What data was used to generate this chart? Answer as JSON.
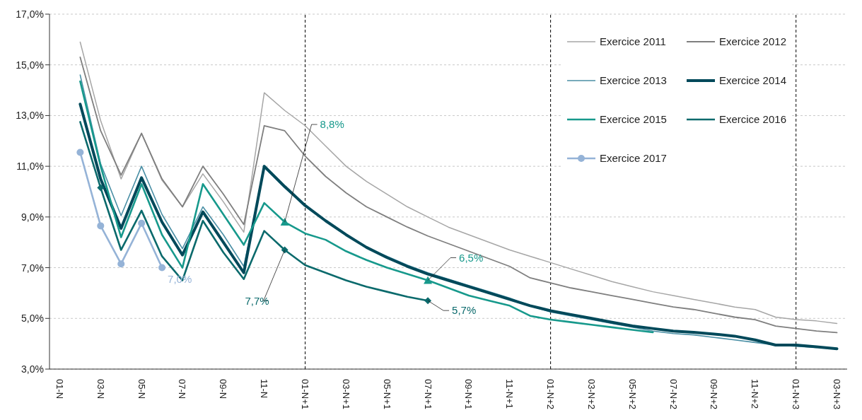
{
  "chart_data": {
    "type": "line",
    "categories": [
      "01-N",
      null,
      "03-N",
      null,
      "05-N",
      null,
      "07-N",
      null,
      "09-N",
      null,
      "11-N",
      null,
      "01-N+1",
      null,
      "03-N+1",
      null,
      "05-N+1",
      null,
      "07-N+1",
      null,
      "09-N+1",
      null,
      "11-N+1",
      null,
      "01-N+2",
      null,
      "03-N+2",
      null,
      "05-N+2",
      null,
      "07-N+2",
      null,
      "09-N+2",
      null,
      "11-N+2",
      null,
      "01-N+3",
      null,
      "03-N+3"
    ],
    "series": [
      {
        "name": "Exercice 2011",
        "color": "#a6a6a6",
        "values": [
          null,
          15.9,
          12.8,
          10.5,
          12.3,
          10.45,
          9.4,
          10.7,
          9.6,
          8.4,
          13.9,
          13.2,
          12.6,
          11.8,
          11.0,
          10.4,
          9.9,
          9.4,
          9.0,
          8.6,
          8.3,
          8.0,
          7.7,
          7.45,
          7.2,
          6.95,
          6.7,
          6.45,
          6.25,
          6.05,
          5.9,
          5.75,
          5.6,
          5.45,
          5.35,
          5.05,
          4.95,
          4.9,
          4.8
        ]
      },
      {
        "name": "Exercice 2012",
        "color": "#7f7f7f",
        "values": [
          null,
          15.3,
          12.4,
          10.65,
          12.3,
          10.5,
          9.4,
          11.0,
          9.9,
          8.7,
          12.6,
          12.4,
          11.4,
          10.6,
          9.95,
          9.4,
          9.0,
          8.6,
          8.25,
          7.95,
          7.65,
          7.35,
          7.05,
          6.6,
          6.4,
          6.2,
          6.05,
          5.9,
          5.75,
          5.6,
          5.45,
          5.35,
          5.2,
          5.05,
          4.95,
          4.7,
          4.6,
          4.5,
          4.44
        ]
      },
      {
        "name": "Exercice 2013",
        "color": "#4a8fa5",
        "values": [
          null,
          14.6,
          11.1,
          9.05,
          11.0,
          9.1,
          7.75,
          9.4,
          8.3,
          7.05,
          10.95,
          10.15,
          9.45,
          8.85,
          8.3,
          7.8,
          7.45,
          7.1,
          6.8,
          6.55,
          6.3,
          6.05,
          5.8,
          5.5,
          5.25,
          5.1,
          4.95,
          4.8,
          4.65,
          4.5,
          4.4,
          4.35,
          4.25,
          4.15,
          4.05,
          3.95,
          3.9,
          3.85,
          null
        ]
      },
      {
        "name": "Exercice 2014",
        "color": "#00495a",
        "values": [
          null,
          13.45,
          10.5,
          8.55,
          10.55,
          8.8,
          7.5,
          9.2,
          8.0,
          6.8,
          11.0,
          10.2,
          9.45,
          8.85,
          8.3,
          7.8,
          7.4,
          7.05,
          6.75,
          6.5,
          6.25,
          6.0,
          5.75,
          5.5,
          5.3,
          5.15,
          5.0,
          4.85,
          4.7,
          4.6,
          4.5,
          4.45,
          4.38,
          4.3,
          4.15,
          3.95,
          3.95,
          3.88,
          3.8
        ]
      },
      {
        "name": "Exercice 2015",
        "color": "#17998c",
        "values": [
          null,
          14.35,
          11.0,
          8.2,
          10.3,
          8.3,
          7.0,
          10.3,
          9.1,
          7.9,
          9.55,
          8.8,
          8.35,
          8.1,
          7.65,
          7.3,
          7.0,
          6.75,
          6.5,
          6.2,
          5.9,
          5.7,
          5.5,
          5.1,
          4.95,
          4.85,
          4.75,
          4.65,
          4.55,
          4.45,
          null,
          null,
          null,
          null,
          null,
          null,
          null,
          null,
          null
        ]
      },
      {
        "name": "Exercice 2016",
        "color": "#0b6a6c",
        "values": [
          null,
          12.75,
          10.15,
          7.7,
          9.25,
          7.45,
          6.5,
          8.85,
          7.6,
          6.55,
          8.45,
          7.7,
          7.1,
          6.8,
          6.5,
          6.25,
          6.05,
          5.85,
          5.7,
          null,
          null,
          null,
          null,
          null,
          null,
          null,
          null,
          null,
          null,
          null,
          null,
          null,
          null,
          null,
          null,
          null,
          null,
          null,
          null
        ]
      },
      {
        "name": "Exercice 2017",
        "color": "#95b3d7",
        "marker": "circle",
        "values": [
          null,
          11.55,
          8.65,
          7.15,
          8.75,
          7.0,
          null,
          null,
          null,
          null,
          null,
          null,
          null,
          null,
          null,
          null,
          null,
          null,
          null,
          null,
          null,
          null,
          null,
          null,
          null,
          null,
          null,
          null,
          null,
          null,
          null,
          null,
          null,
          null,
          null,
          null,
          null,
          null,
          null
        ],
        "value_labels": [
          null,
          null,
          null,
          null,
          null,
          "7,0%",
          null,
          null,
          null,
          null,
          null,
          null,
          null,
          null,
          null,
          null,
          null,
          null,
          null,
          null,
          null,
          null,
          null,
          null,
          null,
          null,
          null,
          null,
          null,
          null,
          null,
          null,
          null,
          null,
          null,
          null,
          null,
          null,
          null
        ]
      },
      {
        "type": "scatter",
        "color": "#17998c",
        "marker": "triangle",
        "values": [
          null,
          null,
          null,
          null,
          null,
          null,
          null,
          null,
          null,
          null,
          null,
          8.8,
          null,
          null,
          null,
          null,
          null,
          null,
          6.5,
          null,
          null,
          null,
          null,
          null,
          null,
          null,
          null,
          null,
          null,
          null,
          null,
          null,
          null,
          null,
          null,
          null,
          null,
          null,
          null
        ],
        "value_labels": [
          null,
          null,
          null,
          null,
          null,
          null,
          null,
          null,
          null,
          null,
          null,
          "8,8%",
          null,
          null,
          null,
          null,
          null,
          null,
          "6,5%",
          null,
          null,
          null,
          null,
          null,
          null,
          null,
          null,
          null,
          null,
          null,
          null,
          null,
          null,
          null,
          null,
          null,
          null,
          null,
          null
        ]
      },
      {
        "type": "scatter",
        "color": "#0b6a6c",
        "marker": "diamond",
        "values": [
          null,
          null,
          10.15,
          null,
          null,
          null,
          null,
          null,
          null,
          null,
          null,
          7.7,
          null,
          null,
          null,
          null,
          null,
          null,
          5.7,
          null,
          null,
          null,
          null,
          null,
          null,
          null,
          null,
          null,
          null,
          null,
          null,
          null,
          null,
          null,
          null,
          null,
          null,
          null,
          null
        ],
        "value_labels": [
          null,
          null,
          null,
          null,
          null,
          null,
          null,
          null,
          null,
          null,
          null,
          "7,7%",
          null,
          null,
          null,
          null,
          null,
          null,
          "5,7%",
          null,
          null,
          null,
          null,
          null,
          null,
          null,
          null,
          null,
          null,
          null,
          null,
          null,
          null,
          null,
          null,
          null,
          null,
          null,
          null
        ]
      }
    ],
    "ylim": [
      3,
      17
    ],
    "yticks": [
      {
        "value": 3,
        "label": "3,0%"
      },
      {
        "value": 5,
        "label": "5,0%"
      },
      {
        "value": 7,
        "label": "7,0%"
      },
      {
        "value": 9,
        "label": "9,0%"
      },
      {
        "value": 11,
        "label": "11,0%"
      },
      {
        "value": 13,
        "label": "13,0%"
      },
      {
        "value": 15,
        "label": "15,0%"
      },
      {
        "value": 17,
        "label": "17,0%"
      }
    ],
    "ref_lines": [
      {
        "axis": "x",
        "value": "01-N+1",
        "color": "#000000",
        "line_style": "dashed"
      },
      {
        "axis": "x",
        "value": "01-N+2",
        "color": "#000000",
        "line_style": "dashed"
      },
      {
        "axis": "x",
        "value": "01-N+3",
        "color": "#000000",
        "line_style": "dashed"
      }
    ],
    "grid": "y",
    "legend": "top right"
  }
}
